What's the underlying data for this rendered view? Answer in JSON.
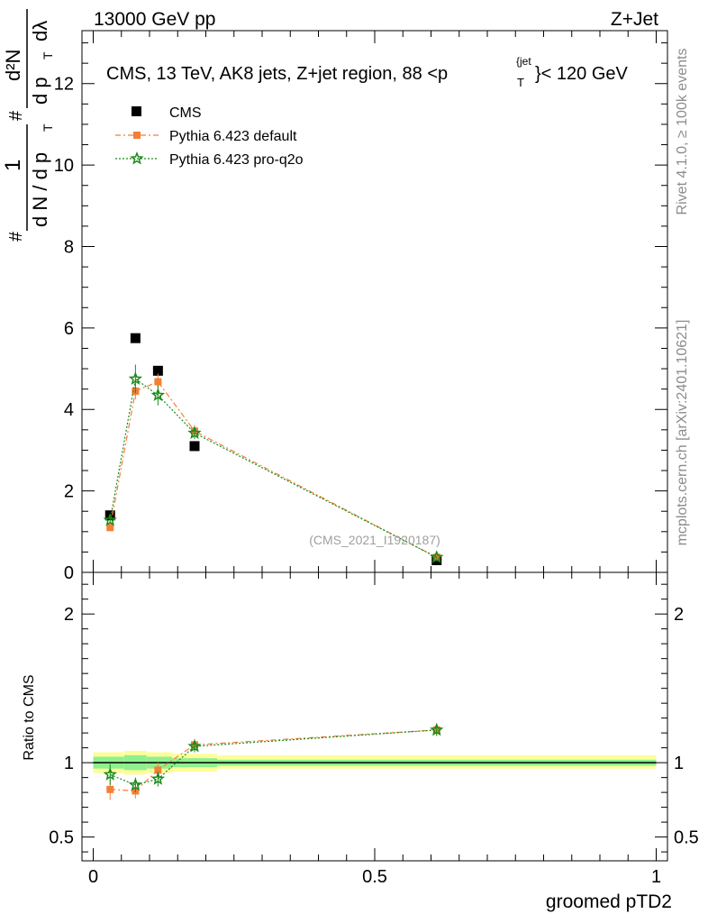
{
  "header": {
    "left": "13000 GeV pp",
    "right": "Z+Jet"
  },
  "side_labels": {
    "rivet": "Rivet 4.1.0, ≥ 100k events",
    "mcplots": "mcplots.cern.ch [arXiv:2401.10621]"
  },
  "ylabel_main": {
    "hash": "#",
    "one": "1",
    "dN": "d N / d p",
    "T": "T",
    "hash2": "#",
    "num": "d²N",
    "den": "d p",
    "lambda": "dλ"
  },
  "title_parts": {
    "pre": "CMS, 13 TeV, AK8 jets, Z+jet region, 88 <p",
    "sup": "{jet",
    "sub": "T",
    "post": "}< 120 GeV"
  },
  "watermark": "(CMS_2021_I1920187)",
  "colors": {
    "cms": "#000000",
    "default": "#f47f36",
    "proq2o": "#1b8a1b",
    "band_inner": "#8ef08e",
    "band_outer": "#fdfd9a"
  },
  "chart_data": [
    {
      "type": "scatter",
      "panel": "main",
      "title": "CMS, 13 TeV, AK8 jets, Z+jet region, 88 <p_T^{jet}< 120 GeV",
      "xlabel": "groomed pTD2",
      "ylabel": "1/dN/dp_T d²N/dp_T dλ",
      "xlim": [
        -0.02,
        1.02
      ],
      "ylim": [
        0,
        13.3
      ],
      "yticks": [
        0,
        2,
        4,
        6,
        8,
        10,
        12
      ],
      "ytick_labels": [
        "0",
        "2",
        "4",
        "6",
        "8",
        "10",
        "12"
      ],
      "legend": [
        "CMS",
        "Pythia 6.423 default",
        "Pythia 6.423 pro-q2o"
      ],
      "legend_position": "top-left",
      "series": [
        {
          "name": "CMS",
          "marker": "square",
          "x": [
            0.03,
            0.075,
            0.115,
            0.18,
            0.61
          ],
          "y": [
            1.4,
            5.75,
            4.95,
            3.1,
            0.3
          ],
          "err": [
            0,
            0,
            0,
            0,
            0
          ]
        },
        {
          "name": "Pythia 6.423 default",
          "marker": "square-small",
          "dash": "6,3,2,3",
          "x": [
            0.03,
            0.075,
            0.115,
            0.18,
            0.61
          ],
          "y": [
            1.1,
            4.45,
            4.68,
            3.47,
            0.37
          ],
          "err": [
            0.07,
            0.2,
            0.2,
            0.15,
            0.03
          ]
        },
        {
          "name": "Pythia 6.423 pro-q2o",
          "marker": "star",
          "dash": "2,2",
          "x": [
            0.03,
            0.075,
            0.115,
            0.18,
            0.61
          ],
          "y": [
            1.28,
            4.75,
            4.35,
            3.42,
            0.37
          ],
          "err": [
            0.07,
            0.35,
            0.25,
            0.15,
            0.03
          ]
        }
      ]
    },
    {
      "type": "scatter",
      "panel": "ratio",
      "xlabel": "groomed pTD2",
      "ylabel": "Ratio to CMS",
      "xlim": [
        -0.02,
        1.02
      ],
      "ylim": [
        0.34,
        2.28
      ],
      "yticks": [
        0.5,
        1,
        2
      ],
      "ytick_labels": [
        "0.5",
        "1",
        "2"
      ],
      "xticks": [
        0,
        0.5,
        1
      ],
      "xtick_labels": [
        "0",
        "0.5",
        "1"
      ],
      "band": {
        "edges": [
          0,
          0.055,
          0.095,
          0.14,
          0.22,
          1.0
        ],
        "inner": [
          [
            0.96,
            1.04
          ],
          [
            0.95,
            1.05
          ],
          [
            0.96,
            1.04
          ],
          [
            0.97,
            1.03
          ],
          [
            0.98,
            1.02
          ]
        ],
        "outer": [
          [
            0.93,
            1.07
          ],
          [
            0.92,
            1.08
          ],
          [
            0.93,
            1.07
          ],
          [
            0.94,
            1.06
          ],
          [
            0.96,
            1.05
          ]
        ]
      },
      "series": [
        {
          "name": "Pythia 6.423 default",
          "x": [
            0.03,
            0.075,
            0.115,
            0.18,
            0.61
          ],
          "y": [
            0.82,
            0.81,
            0.95,
            1.12,
            1.22
          ],
          "err": [
            0.07,
            0.05,
            0.05,
            0.04,
            0.04
          ]
        },
        {
          "name": "Pythia 6.423 pro-q2o",
          "x": [
            0.03,
            0.075,
            0.115,
            0.18,
            0.61
          ],
          "y": [
            0.92,
            0.85,
            0.89,
            1.11,
            1.22
          ],
          "err": [
            0.07,
            0.05,
            0.05,
            0.04,
            0.04
          ]
        }
      ]
    }
  ]
}
